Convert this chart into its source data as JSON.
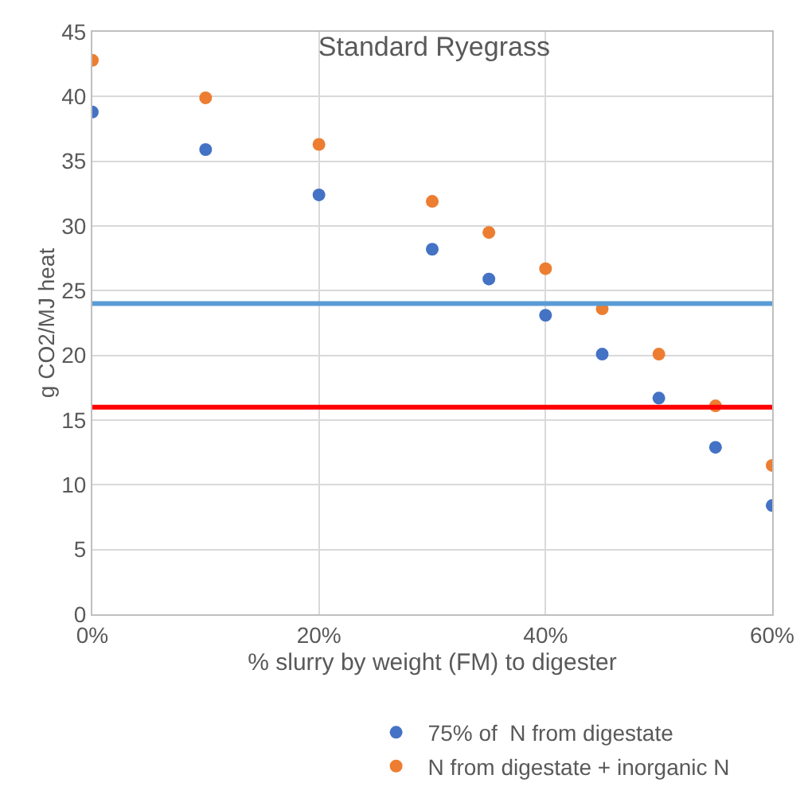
{
  "chart_data": {
    "type": "scatter",
    "title": "Standard Ryegrass",
    "xlabel": "% slurry by weight (FM) to digester",
    "ylabel": "g CO2/MJ heat",
    "x": [
      0,
      10,
      20,
      30,
      35,
      40,
      45,
      50,
      55,
      60
    ],
    "series": [
      {
        "name": "75% of  N from digestate",
        "color": "#4472c4",
        "values": [
          38.8,
          35.9,
          32.4,
          28.2,
          25.9,
          23.1,
          20.1,
          16.7,
          12.9,
          8.4
        ]
      },
      {
        "name": "N from digestate + inorganic N",
        "color": "#ed7d31",
        "values": [
          42.8,
          39.9,
          36.3,
          31.9,
          29.5,
          26.7,
          23.6,
          20.1,
          16.1,
          11.5
        ]
      }
    ],
    "ref_lines": [
      {
        "axis": "y",
        "value": 24,
        "color": "#5b9bd5"
      },
      {
        "axis": "y",
        "value": 16,
        "color": "#ff0000"
      }
    ],
    "xlim": [
      0,
      60
    ],
    "xticks": [
      {
        "value": 0,
        "label": "0%"
      },
      {
        "value": 20,
        "label": "20%"
      },
      {
        "value": 40,
        "label": "40%"
      },
      {
        "value": 60,
        "label": "60%"
      }
    ],
    "ylim": [
      0,
      45
    ],
    "yticks": [
      0,
      5,
      10,
      15,
      20,
      25,
      30,
      35,
      40,
      45
    ],
    "grid": true,
    "legend": "bottom",
    "marker": "circle"
  }
}
